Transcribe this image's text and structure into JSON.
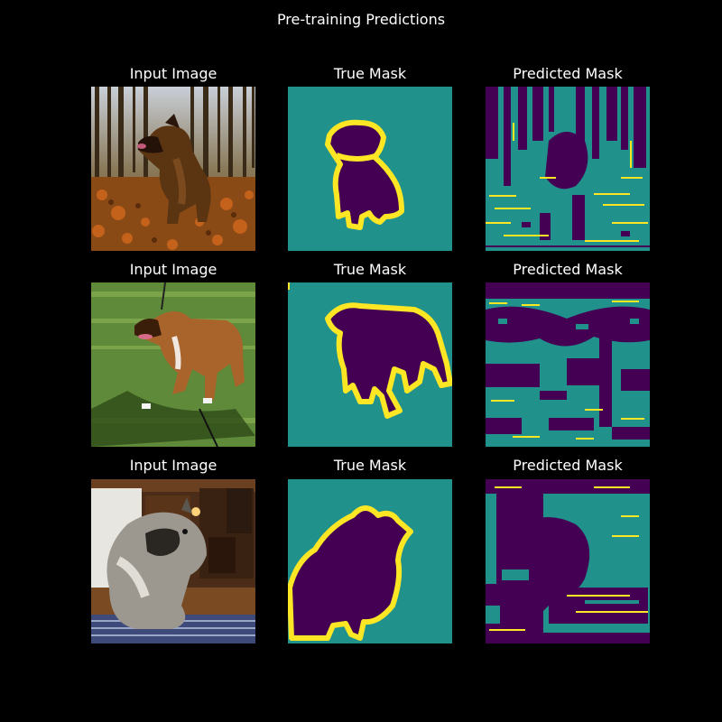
{
  "figure": {
    "title": "Pre-training Predictions"
  },
  "columns": {
    "input_label": "Input Image",
    "true_label": "True Mask",
    "pred_label": "Predicted Mask"
  },
  "colors": {
    "background": "#000000",
    "mask_background": "#21918c",
    "mask_object": "#440154",
    "mask_border": "#fde725"
  },
  "rows": [
    {
      "input_label": "Input Image",
      "true_label": "True Mask",
      "pred_label": "Predicted Mask",
      "input_scene": "dog-in-autumn-forest"
    },
    {
      "input_label": "Input Image",
      "true_label": "True Mask",
      "pred_label": "Predicted Mask",
      "input_scene": "dog-on-grass"
    },
    {
      "input_label": "Input Image",
      "true_label": "True Mask",
      "pred_label": "Predicted Mask",
      "input_scene": "fluffy-dog-indoors"
    }
  ]
}
